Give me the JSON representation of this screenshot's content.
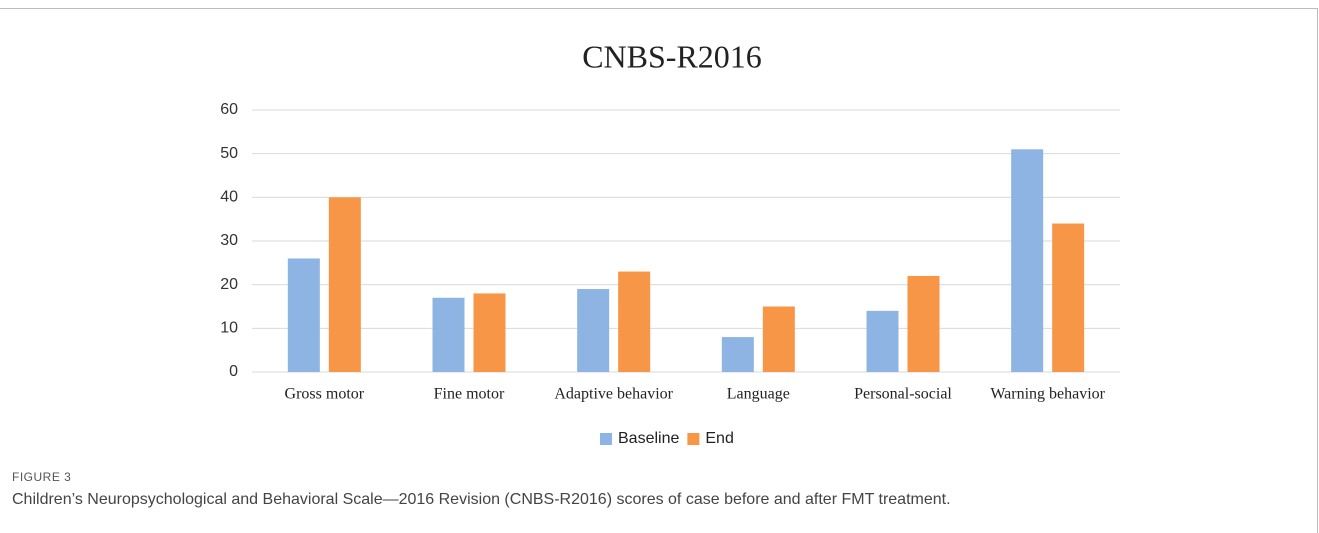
{
  "chart_data": {
    "type": "bar",
    "title": "CNBS-R2016",
    "categories": [
      "Gross motor",
      "Fine motor",
      "Adaptive behavior",
      "Language",
      "Personal-social",
      "Warning behavior"
    ],
    "series": [
      {
        "name": "Baseline",
        "color": "#8eb4e3",
        "values": [
          26,
          17,
          19,
          8,
          14,
          51
        ]
      },
      {
        "name": "End",
        "color": "#f79646",
        "values": [
          40,
          18,
          23,
          15,
          22,
          34
        ]
      }
    ],
    "ylim": [
      0,
      60
    ],
    "yticks": [
      0,
      10,
      20,
      30,
      40,
      50,
      60
    ],
    "grid": true,
    "legend": "bottom"
  },
  "caption": {
    "label": "FIGURE 3",
    "text": "Children’s Neuropsychological and Behavioral Scale—2016 Revision (CNBS-R2016) scores of case before and after FMT treatment."
  }
}
